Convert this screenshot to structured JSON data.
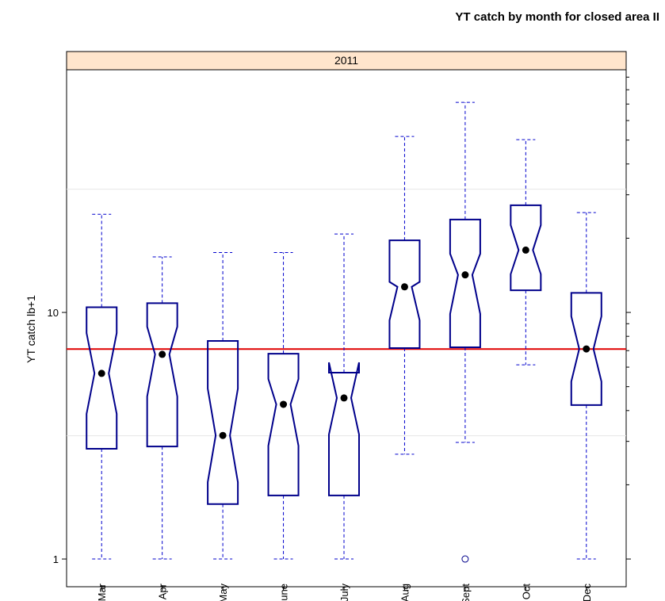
{
  "chart_data": {
    "type": "boxplot",
    "title": "YT catch by month for closed area II",
    "panel_title": "2011",
    "y_label": "YT catch lb+1",
    "log_y": true,
    "categories": [
      "Mar",
      "Apr",
      "May",
      "June",
      "July",
      "Aug",
      "Sept",
      "Oct",
      "Dec"
    ],
    "whisker_low": [
      1,
      1,
      1,
      1,
      1,
      2.66,
      2.97,
      6.13,
      1
    ],
    "q1": [
      2.8,
      2.86,
      1.67,
      1.81,
      1.81,
      7.17,
      7.22,
      12.3,
      4.21
    ],
    "notch_low": [
      3.88,
      4.56,
      2.05,
      2.88,
      3.2,
      9.29,
      9.86,
      14.3,
      5.25
    ],
    "median": [
      5.66,
      6.76,
      3.17,
      4.24,
      4.5,
      12.7,
      14.2,
      17.9,
      7.11
    ],
    "notch_high": [
      8.25,
      8.75,
      4.91,
      5.37,
      6.27,
      13.3,
      17.3,
      22.6,
      9.64
    ],
    "q3": [
      10.5,
      10.9,
      7.66,
      6.8,
      5.7,
      19.6,
      23.8,
      27.2,
      12.0
    ],
    "whisker_high": [
      25.0,
      16.8,
      17.5,
      17.5,
      20.8,
      51.7,
      71.1,
      50.2,
      25.4
    ],
    "outliers": [
      [],
      [],
      [],
      [],
      [],
      [],
      [
        1
      ],
      [],
      []
    ],
    "reference_line": 7.1,
    "reference_color": "#e00000",
    "box_color": "#00008b",
    "whisker_color": "#0000cd",
    "ylim": [
      0.772,
      96.4
    ],
    "yticks": [
      1,
      10
    ],
    "yminorticks": [
      2,
      3,
      4,
      5,
      6,
      7,
      8,
      9,
      20,
      30,
      40,
      50,
      60,
      70,
      80,
      90
    ],
    "grid_lines": [
      3.16,
      31.6
    ]
  }
}
